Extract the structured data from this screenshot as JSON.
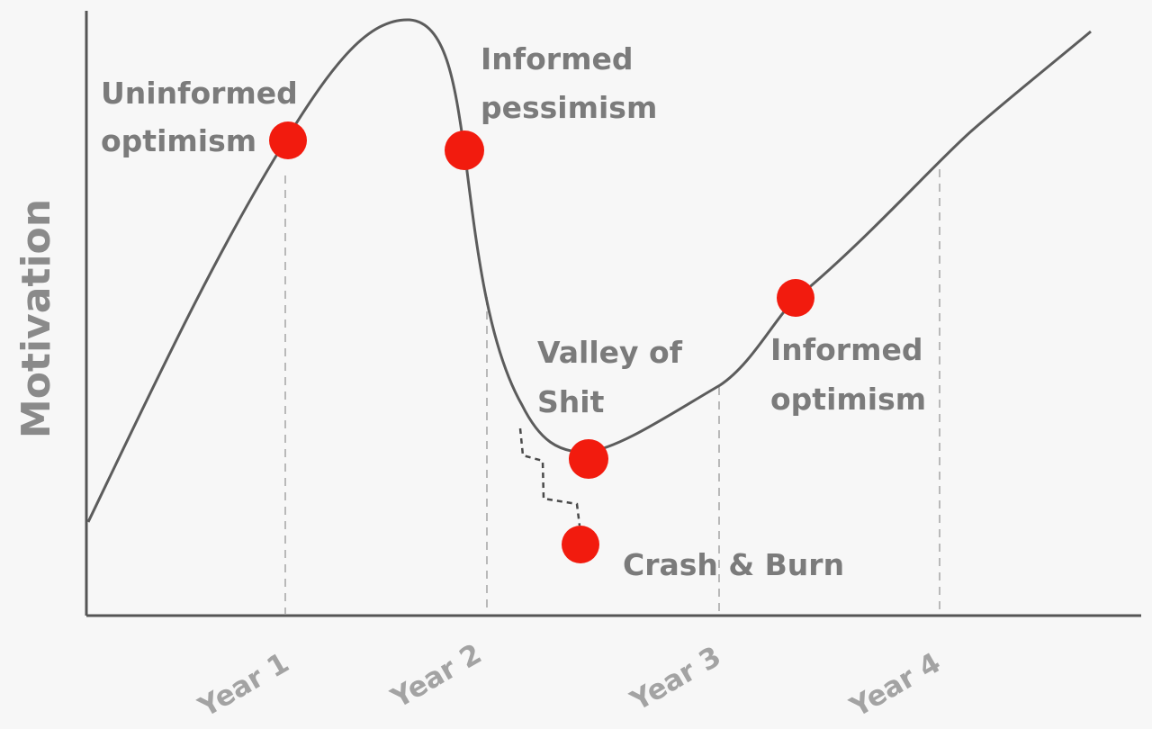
{
  "y_axis_title": "Motivation",
  "x_ticks": [
    {
      "id": "year-1",
      "label": "Year 1"
    },
    {
      "id": "year-2",
      "label": "Year 2"
    },
    {
      "id": "year-3",
      "label": "Year 3"
    },
    {
      "id": "year-4",
      "label": "Year 4"
    }
  ],
  "stages": [
    {
      "id": "uninformed-optimism",
      "lines": [
        "Uninformed",
        "optimism"
      ]
    },
    {
      "id": "informed-pessimism",
      "lines": [
        "Informed",
        "pessimism"
      ]
    },
    {
      "id": "valley",
      "lines": [
        "Valley of",
        "Shit"
      ]
    },
    {
      "id": "informed-optimism",
      "lines": [
        "Informed",
        "optimism"
      ]
    },
    {
      "id": "crash-and-burn",
      "lines": [
        "Crash & Burn"
      ]
    }
  ],
  "colors": {
    "point": "#f21b0e",
    "curve": "#5c5c5c",
    "label": "#7b7b7b",
    "background": "#f7f7f7"
  }
}
